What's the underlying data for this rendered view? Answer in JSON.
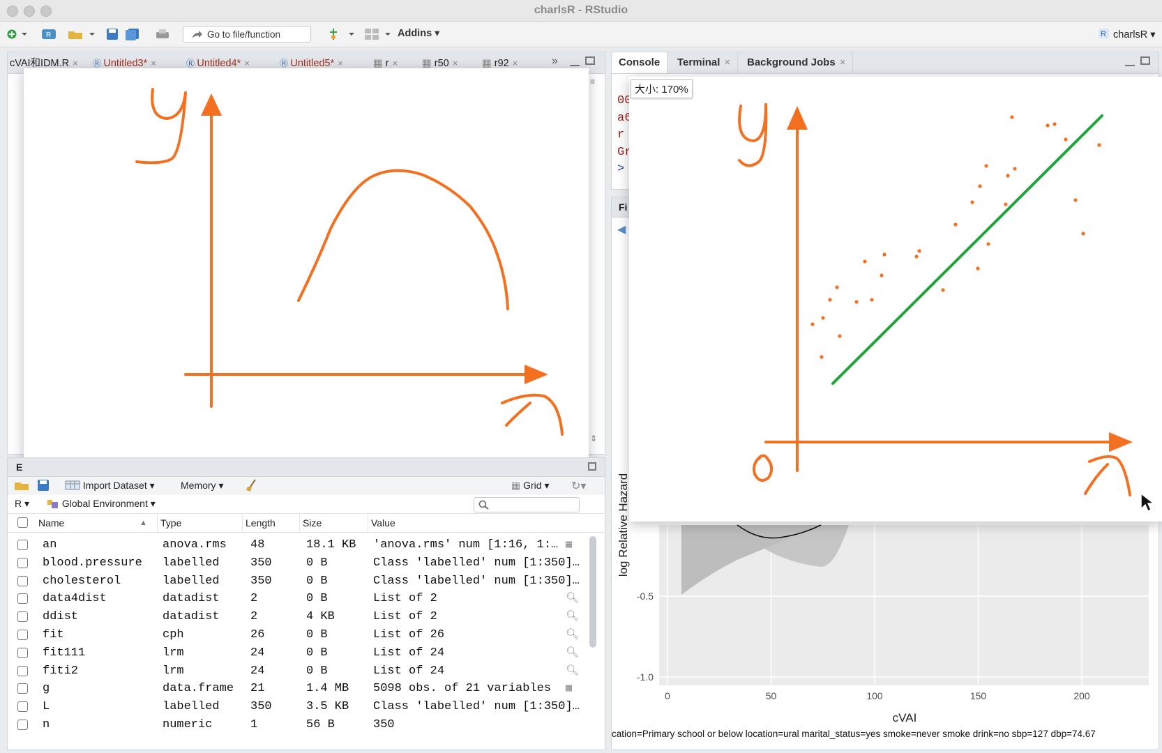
{
  "window": {
    "title": "charlsR - RStudio"
  },
  "toolbar": {
    "goto_placeholder": "Go to file/function",
    "addins_label": "Addins",
    "project_label": "charlsR"
  },
  "editor_tabs": [
    {
      "label": "cVAI和IDM.R"
    },
    {
      "label": "Untitled3*"
    },
    {
      "label": "Untitled4*"
    },
    {
      "label": "Untitled5*"
    },
    {
      "label": "r"
    },
    {
      "label": "r50"
    },
    {
      "label": "r92"
    }
  ],
  "console_tabs": [
    {
      "label": "Console"
    },
    {
      "label": "Terminal"
    },
    {
      "label": "Background Jobs"
    }
  ],
  "console_lines": [
    "00",
    "a6",
    "r",
    "Gr",
    ">"
  ],
  "files_pane": {
    "tab_stub": "Fi"
  },
  "env_pane": {
    "tab_stub": "E"
  },
  "zoom_tooltip": "大小: 170%",
  "whiteboard_left": {
    "y_label": "y",
    "x_label": "x"
  },
  "whiteboard_right": {
    "y_label": "y",
    "x_label": "x",
    "origin_label": "0"
  },
  "env_toolbar": {
    "import_label": "Import Dataset",
    "memory_label": "Memory",
    "grid_label": "Grid",
    "lang_label": "R",
    "env_label": "Global Environment",
    "search_placeholder": ""
  },
  "env_table": {
    "columns": [
      "Name",
      "Type",
      "Length",
      "Size",
      "Value"
    ],
    "rows": [
      {
        "name": "an",
        "type": "anova.rms",
        "length": "48",
        "size": "18.1 KB",
        "value": "'anova.rms' num [1:16, 1:…",
        "icon": "table-icon"
      },
      {
        "name": "blood.pressure",
        "type": "labelled",
        "length": "350",
        "size": "0 B",
        "value": "Class 'labelled' num [1:350]…",
        "icon": ""
      },
      {
        "name": "cholesterol",
        "type": "labelled",
        "length": "350",
        "size": "0 B",
        "value": "Class 'labelled' num [1:350]…",
        "icon": ""
      },
      {
        "name": "data4dist",
        "type": "datadist",
        "length": "2",
        "size": "0 B",
        "value": "List of 2",
        "icon": "magnifier-icon"
      },
      {
        "name": "ddist",
        "type": "datadist",
        "length": "2",
        "size": "4 KB",
        "value": "List of 2",
        "icon": "magnifier-icon"
      },
      {
        "name": "fit",
        "type": "cph",
        "length": "26",
        "size": "0 B",
        "value": "List of 26",
        "icon": "magnifier-icon"
      },
      {
        "name": "fit111",
        "type": "lrm",
        "length": "24",
        "size": "0 B",
        "value": "List of 24",
        "icon": "magnifier-icon"
      },
      {
        "name": "fiti2",
        "type": "lrm",
        "length": "24",
        "size": "0 B",
        "value": "List of 24",
        "icon": "magnifier-icon"
      },
      {
        "name": "g",
        "type": "data.frame",
        "length": "21",
        "size": "1.4 MB",
        "value": "5098 obs. of 21 variables",
        "icon": "table-icon"
      },
      {
        "name": "L",
        "type": "labelled",
        "length": "350",
        "size": "3.5 KB",
        "value": "Class 'labelled' num [1:350]…",
        "icon": ""
      },
      {
        "name": "n",
        "type": "numeric",
        "length": "1",
        "size": "56 B",
        "value": "350",
        "icon": ""
      }
    ]
  },
  "plot": {
    "ylabel": "log Relative Hazard",
    "xlabel": "cVAI",
    "x_ticks": [
      "0",
      "50",
      "100",
      "150",
      "200"
    ],
    "y_ticks": [
      "-0.5",
      "-1.0"
    ],
    "caption": "cation=Primary school or below location=ural marital_status=yes smoke=never smoke drink=no sbp=127 dbp=74.67"
  }
}
